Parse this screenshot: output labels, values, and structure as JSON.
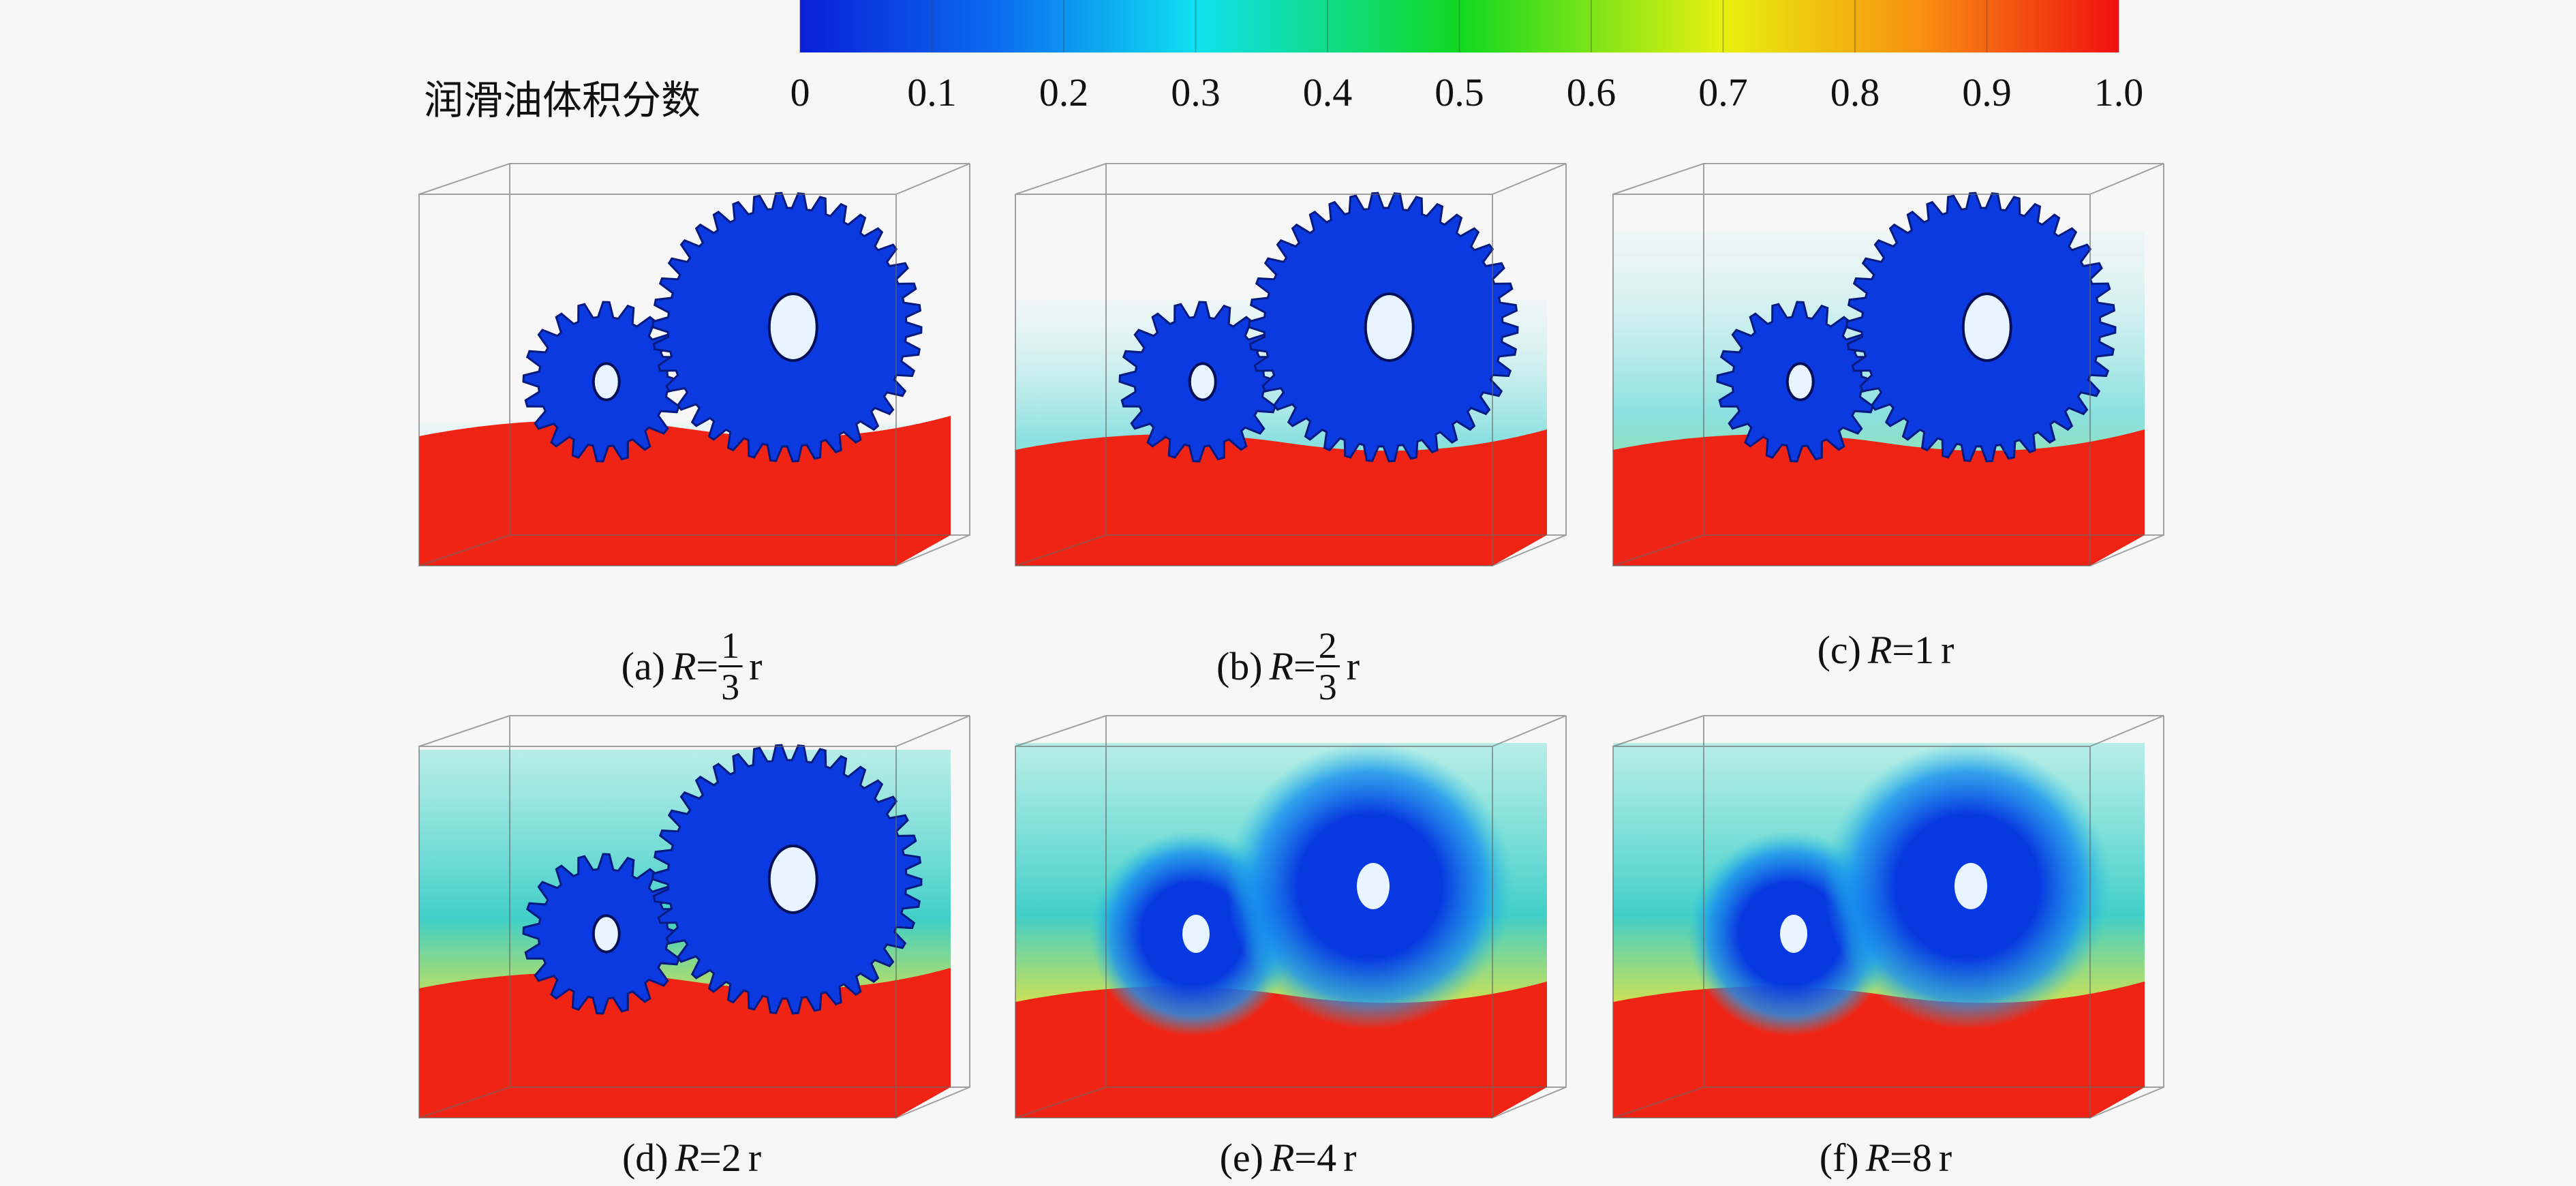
{
  "colorbar": {
    "label": "润滑油体积分数",
    "range": [
      0,
      1
    ],
    "ticks": [
      0,
      0.1,
      0.2,
      0.3,
      0.4,
      0.5,
      0.6,
      0.7,
      0.8,
      0.9,
      {
        "value": 1,
        "label": "1.0"
      }
    ]
  },
  "panels": [
    {
      "label": "(a)",
      "var": "R",
      "eq": "=",
      "num": "1",
      "den": "3",
      "unit": "r"
    },
    {
      "label": "(b)",
      "var": "R",
      "eq": "=",
      "num": "2",
      "den": "3",
      "unit": "r"
    },
    {
      "label": "(c)",
      "var": "R",
      "eq": "=",
      "value": "1",
      "unit": "r"
    },
    {
      "label": "(d)",
      "var": "R",
      "eq": "=",
      "value": "2",
      "unit": "r"
    },
    {
      "label": "(e)",
      "var": "R",
      "eq": "=",
      "value": "4",
      "unit": "r"
    },
    {
      "label": "(f)",
      "var": "R",
      "eq": "=",
      "value": "8",
      "unit": "r"
    }
  ]
}
